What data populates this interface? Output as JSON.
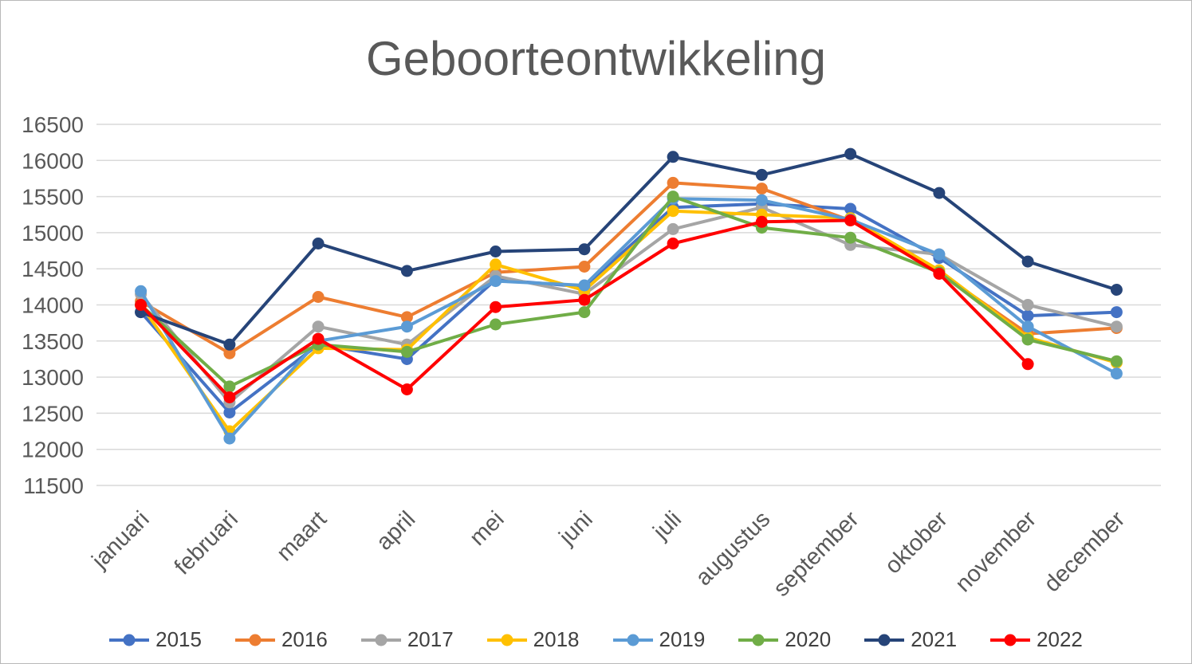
{
  "chart": {
    "title": "Geboorteontwikkeling"
  },
  "chart_data": {
    "type": "line",
    "title": "Geboorteontwikkeling",
    "categories": [
      "januari",
      "februari",
      "maart",
      "april",
      "mei",
      "juni",
      "juli",
      "augustus",
      "september",
      "oktober",
      "november",
      "december"
    ],
    "series": [
      {
        "name": "2015",
        "color": "#4472C4",
        "values": [
          13900,
          12510,
          13450,
          13250,
          14350,
          14250,
          15350,
          15400,
          15330,
          14650,
          13850,
          13900
        ]
      },
      {
        "name": "2016",
        "color": "#ED7D31",
        "values": [
          14050,
          13330,
          14110,
          13830,
          14450,
          14530,
          15690,
          15610,
          15170,
          14450,
          13600,
          13680
        ]
      },
      {
        "name": "2017",
        "color": "#A5A5A5",
        "values": [
          14150,
          12650,
          13700,
          13450,
          14400,
          14150,
          15050,
          15350,
          14830,
          14700,
          14000,
          13700
        ]
      },
      {
        "name": "2018",
        "color": "#FFC000",
        "values": [
          14000,
          12250,
          13400,
          13380,
          14560,
          14200,
          15300,
          15250,
          15200,
          14480,
          13550,
          13200
        ]
      },
      {
        "name": "2019",
        "color": "#5B9BD5",
        "values": [
          14190,
          12150,
          13500,
          13700,
          14330,
          14270,
          15470,
          15450,
          15180,
          14700,
          13700,
          13050
        ]
      },
      {
        "name": "2020",
        "color": "#70AD47",
        "values": [
          14000,
          12870,
          13450,
          13350,
          13730,
          13900,
          15500,
          15070,
          14930,
          14450,
          13520,
          13220
        ]
      },
      {
        "name": "2021",
        "color": "#264478",
        "values": [
          13900,
          13450,
          14850,
          14470,
          14740,
          14770,
          16050,
          15800,
          16090,
          15550,
          14600,
          14210
        ]
      },
      {
        "name": "2022",
        "color": "#FF0000",
        "values": [
          14000,
          12720,
          13530,
          12830,
          13970,
          14070,
          14850,
          15150,
          15170,
          14430,
          13180,
          null
        ]
      }
    ],
    "ylim": [
      11500,
      16500
    ],
    "ytick_step": 500,
    "grid": true,
    "legend_position": "bottom",
    "gridline_color": "#D9D9D9",
    "axis_label_color": "#595959",
    "title_color": "#595959"
  }
}
